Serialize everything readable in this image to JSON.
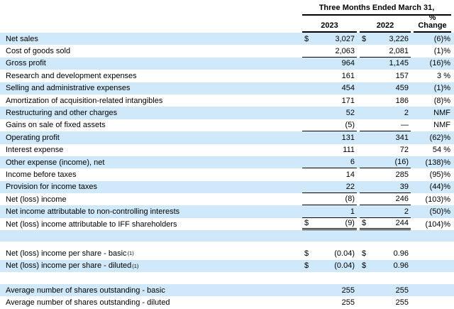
{
  "table": {
    "header": {
      "period_label": "Three Months Ended March 31,",
      "col_2023": "2023",
      "col_2022": "2022",
      "pct_line1": "%",
      "pct_line2": "Change"
    },
    "accent_row_color": "#cfe9fa",
    "rows": [
      {
        "label": "Net sales",
        "dollar": true,
        "v2023": "3,027",
        "v2022": "3,226",
        "pct": "(6)%",
        "bg": "blue"
      },
      {
        "label": "Cost of goods sold",
        "v2023": "2,063",
        "v2022": "2,081",
        "pct": "(1)%",
        "bg": "white",
        "rule": "single"
      },
      {
        "label": "Gross profit",
        "v2023": "964",
        "v2022": "1,145",
        "pct": "(16)%",
        "bg": "blue"
      },
      {
        "label": "Research and development expenses",
        "v2023": "161",
        "v2022": "157",
        "pct": "3 %",
        "bg": "white"
      },
      {
        "label": "Selling and administrative expenses",
        "v2023": "454",
        "v2022": "459",
        "pct": "(1)%",
        "bg": "blue"
      },
      {
        "label": "Amortization of acquisition-related intangibles",
        "v2023": "171",
        "v2022": "186",
        "pct": "(8)%",
        "bg": "white"
      },
      {
        "label": "Restructuring and other charges",
        "v2023": "52",
        "v2022": "2",
        "pct": "NMF",
        "bg": "blue"
      },
      {
        "label": "Gains on sale of fixed assets",
        "v2023": "(5)",
        "v2022": "—",
        "pct": "NMF",
        "bg": "white",
        "rule": "single"
      },
      {
        "label": "Operating profit",
        "v2023": "131",
        "v2022": "341",
        "pct": "(62)%",
        "bg": "blue"
      },
      {
        "label": "Interest expense",
        "v2023": "111",
        "v2022": "72",
        "pct": "54 %",
        "bg": "white"
      },
      {
        "label": "Other expense (income), net",
        "v2023": "6",
        "v2022": "(16)",
        "pct": "(138)%",
        "bg": "blue",
        "rule": "single"
      },
      {
        "label": "Income before taxes",
        "v2023": "14",
        "v2022": "285",
        "pct": "(95)%",
        "bg": "white"
      },
      {
        "label": "Provision for income taxes",
        "v2023": "22",
        "v2022": "39",
        "pct": "(44)%",
        "bg": "blue",
        "rule": "single"
      },
      {
        "label": "Net (loss) income",
        "v2023": "(8)",
        "v2022": "246",
        "pct": "(103)%",
        "bg": "white",
        "rule": "single"
      },
      {
        "label": "Net income attributable to non-controlling interests",
        "v2023": "1",
        "v2022": "2",
        "pct": "(50)%",
        "bg": "blue",
        "rule": "single"
      },
      {
        "label": "Net (loss) income attributable to IFF shareholders",
        "dollar": true,
        "v2023": "(9)",
        "v2022": "244",
        "pct": "(104)%",
        "bg": "white",
        "rule": "double"
      },
      {
        "type": "spacer",
        "bg": "blue",
        "h": 16
      },
      {
        "type": "spacer",
        "bg": "white",
        "h": 8
      },
      {
        "label": "Net (loss) income per share - basic",
        "sup": "(1)",
        "dollar": true,
        "v2023": "(0.04)",
        "v2022": "0.96",
        "pct": "",
        "bg": "white"
      },
      {
        "label": "Net (loss) income per share - diluted",
        "sup": "(1)",
        "dollar": true,
        "v2023": "(0.04)",
        "v2022": "0.96",
        "pct": "",
        "bg": "blue"
      },
      {
        "type": "spacer",
        "bg": "white",
        "h": 17
      },
      {
        "label": "Average number of shares outstanding - basic",
        "v2023": "255",
        "v2022": "255",
        "pct": "",
        "bg": "blue"
      },
      {
        "label": "Average number of shares outstanding - diluted",
        "v2023": "255",
        "v2022": "255",
        "pct": "",
        "bg": "white"
      }
    ]
  }
}
